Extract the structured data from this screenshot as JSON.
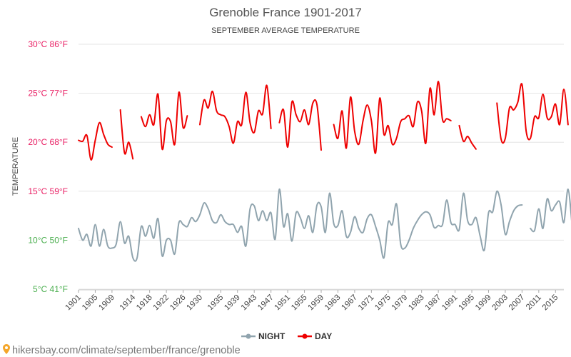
{
  "chart_data": {
    "type": "line",
    "title": "Grenoble France 1901-2017",
    "subtitle": "SEPTEMBER AVERAGE TEMPERATURE",
    "ylabel": "TEMPERATURE",
    "xlabel": "",
    "ylim": [
      5,
      30
    ],
    "xlim": [
      1901,
      2017
    ],
    "grid": true,
    "legend_position": "bottom-center",
    "y_ticks": [
      {
        "value": 5,
        "label": "5°C 41°F",
        "color": "#4caf50"
      },
      {
        "value": 10,
        "label": "10°C 50°F",
        "color": "#4caf50"
      },
      {
        "value": 15,
        "label": "15°C 59°F",
        "color": "#e91e63"
      },
      {
        "value": 20,
        "label": "20°C 68°F",
        "color": "#e91e63"
      },
      {
        "value": 25,
        "label": "25°C 77°F",
        "color": "#e91e63"
      },
      {
        "value": 30,
        "label": "30°C 86°F",
        "color": "#e91e63"
      }
    ],
    "x_ticks": [
      1901,
      1905,
      1909,
      1914,
      1918,
      1922,
      1926,
      1930,
      1935,
      1939,
      1943,
      1947,
      1951,
      1955,
      1959,
      1963,
      1967,
      1971,
      1975,
      1979,
      1983,
      1987,
      1991,
      1995,
      1999,
      2003,
      2007,
      2011,
      2015
    ],
    "series": [
      {
        "name": "NIGHT",
        "color": "#90a4ae",
        "values": [
          11.2,
          10.0,
          10.6,
          9.4,
          11.6,
          9.4,
          11.1,
          9.4,
          9.2,
          9.6,
          11.9,
          9.7,
          10.4,
          8.2,
          8.2,
          11.4,
          10.4,
          11.5,
          10.2,
          12.2,
          8.4,
          10.0,
          10.0,
          8.6,
          11.8,
          11.6,
          11.4,
          12.3,
          11.9,
          12.6,
          13.8,
          13.2,
          12.0,
          11.8,
          12.6,
          11.9,
          11.6,
          11.6,
          10.8,
          11.4,
          9.4,
          13.2,
          13.5,
          12.0,
          13.0,
          12.0,
          12.8,
          10.1,
          15.2,
          11.4,
          12.7,
          9.9,
          12.8,
          12.3,
          11.2,
          12.5,
          10.8,
          13.6,
          13.4,
          10.8,
          14.8,
          11.7,
          11.5,
          13.0,
          10.4,
          10.8,
          12.4,
          11.2,
          10.8,
          12.2,
          12.6,
          11.4,
          10.0,
          8.2,
          11.8,
          11.6,
          13.7,
          9.6,
          9.2,
          10.0,
          11.2,
          12.0,
          12.6,
          12.9,
          12.6,
          11.3,
          11.5,
          11.6,
          14.1,
          11.8,
          11.6,
          11.1,
          14.8,
          12.0,
          11.6,
          12.3,
          10.4,
          9.0,
          12.8,
          12.9,
          15.0,
          13.6,
          10.6,
          11.9,
          13.0,
          13.5,
          13.6,
          null,
          11.2,
          11.0,
          13.2,
          11.2,
          14.2,
          13.0,
          13.6,
          13.9,
          11.8,
          15.2,
          11.4
        ]
      },
      {
        "name": "DAY",
        "color": "#ee0000",
        "values": [
          20.2,
          20.1,
          20.7,
          18.2,
          20.2,
          22.0,
          20.8,
          19.8,
          19.5,
          null,
          23.3,
          18.9,
          20.0,
          18.3,
          null,
          22.6,
          21.6,
          22.8,
          21.8,
          24.9,
          19.3,
          22.2,
          22.1,
          19.8,
          25.1,
          21.5,
          22.7,
          null,
          null,
          21.8,
          24.3,
          23.5,
          25.2,
          23.2,
          22.8,
          22.6,
          21.6,
          19.9,
          22.1,
          21.8,
          25.1,
          22.0,
          21.0,
          23.2,
          22.9,
          25.8,
          21.4,
          null,
          22.0,
          23.3,
          19.5,
          24.1,
          22.8,
          22.1,
          23.3,
          21.8,
          24.0,
          23.8,
          19.2,
          null,
          null,
          21.8,
          20.4,
          23.2,
          19.4,
          24.6,
          21.1,
          19.8,
          22.2,
          23.8,
          22.2,
          18.9,
          24.5,
          20.8,
          21.7,
          19.8,
          20.4,
          22.1,
          22.4,
          22.7,
          21.6,
          24.1,
          23.2,
          19.9,
          25.5,
          22.8,
          26.2,
          22.3,
          22.4,
          22.2,
          null,
          21.7,
          20.1,
          20.6,
          19.9,
          19.3,
          null,
          null,
          null,
          null,
          24.0,
          20.3,
          20.4,
          23.5,
          23.3,
          24.1,
          25.9,
          21.1,
          20.4,
          22.6,
          22.5,
          24.9,
          22.5,
          22.6,
          23.9,
          21.8,
          25.4,
          21.8
        ]
      }
    ]
  },
  "credit": {
    "text": "hikersbay.com/climate/september/france/grenoble",
    "icon": "map-pin-icon",
    "icon_color": "#f4a62a"
  }
}
